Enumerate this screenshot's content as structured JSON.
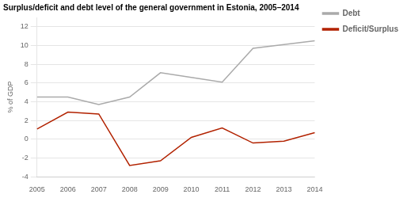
{
  "chart_data": {
    "type": "line",
    "title": "Surplus/deficit and debt level of the general government in Estonia, 2005–2014",
    "y_label": "% of GDP",
    "categories": [
      "2005",
      "2006",
      "2007",
      "2008",
      "2009",
      "2010",
      "2011",
      "2012",
      "2013",
      "2014"
    ],
    "series": [
      {
        "name": "Debt",
        "color": "#aaaaaa",
        "values": [
          4.5,
          4.5,
          3.7,
          4.5,
          7.1,
          6.6,
          6.1,
          9.7,
          10.1,
          10.5
        ]
      },
      {
        "name": "Deficit/Surplus",
        "color": "#b22200",
        "values": [
          1.1,
          2.9,
          2.7,
          -2.8,
          -2.3,
          0.2,
          1.2,
          -0.4,
          -0.2,
          0.7
        ]
      }
    ],
    "ylim": [
      -4,
      13
    ],
    "yticks": [
      -4,
      -2,
      0,
      2,
      4,
      6,
      8,
      10,
      12
    ],
    "grid": true,
    "legend": "right"
  }
}
